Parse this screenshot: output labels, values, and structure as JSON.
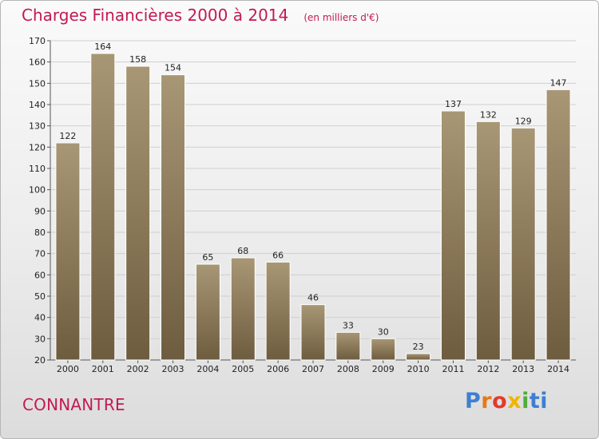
{
  "header": {
    "title": "Charges Financières 2000 à 2014",
    "subtitle": "(en milliers d'€)"
  },
  "footer": {
    "place": "CONNANTRE",
    "logo": "Proxiti"
  },
  "colors": {
    "title": "#c21a55",
    "bar_light": "#a89775",
    "bar_dark": "#6e5c3f",
    "grid": "#cfcfcf"
  },
  "chart_data": {
    "type": "bar",
    "title": "Charges Financières 2000 à 2014",
    "subtitle": "(en milliers d'€)",
    "xlabel": "",
    "ylabel": "",
    "categories": [
      "2000",
      "2001",
      "2002",
      "2003",
      "2004",
      "2005",
      "2006",
      "2007",
      "2008",
      "2009",
      "2010",
      "2011",
      "2012",
      "2013",
      "2014"
    ],
    "values": [
      122,
      164,
      158,
      154,
      65,
      68,
      66,
      46,
      33,
      30,
      23,
      137,
      132,
      129,
      147
    ],
    "ylim": [
      20,
      170
    ],
    "yticks": [
      20,
      30,
      40,
      50,
      60,
      70,
      80,
      90,
      100,
      110,
      120,
      130,
      140,
      150,
      160,
      170
    ],
    "grid": true,
    "data_labels": true
  }
}
